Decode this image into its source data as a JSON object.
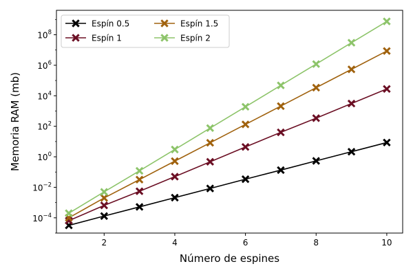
{
  "chart_data": {
    "type": "line",
    "title": "",
    "xlabel": "Número de espines",
    "ylabel": "Memoria RAM (mb)",
    "x": [
      1,
      2,
      3,
      4,
      5,
      6,
      7,
      8,
      9,
      10
    ],
    "xlim": [
      0.65,
      10.45
    ],
    "ylim": [
      1e-05,
      4000000000.0
    ],
    "yscale": "log",
    "grid": false,
    "legend_position": "top-left",
    "legend_columns": 2,
    "xticks": [
      {
        "value": 2,
        "label": "2"
      },
      {
        "value": 4,
        "label": "4"
      },
      {
        "value": 6,
        "label": "6"
      },
      {
        "value": 8,
        "label": "8"
      },
      {
        "value": 10,
        "label": "10"
      }
    ],
    "yticks": [
      {
        "value": 0.0001,
        "base": "10",
        "exp": "−4"
      },
      {
        "value": 0.01,
        "base": "10",
        "exp": "−2"
      },
      {
        "value": 1,
        "base": "10",
        "exp": "0"
      },
      {
        "value": 100,
        "base": "10",
        "exp": "2"
      },
      {
        "value": 10000,
        "base": "10",
        "exp": "4"
      },
      {
        "value": 1000000,
        "base": "10",
        "exp": "6"
      },
      {
        "value": 100000000,
        "base": "10",
        "exp": "8"
      }
    ],
    "series": [
      {
        "name": "Espín 0.5",
        "color": "#000000",
        "values": [
          3.2e-05,
          0.00013,
          0.00052,
          0.0021,
          0.0084,
          0.034,
          0.134,
          0.54,
          2.15,
          8.6
        ]
      },
      {
        "name": "Espín 1",
        "color": "#6b0f24",
        "values": [
          6.5e-05,
          0.00065,
          0.0055,
          0.05,
          0.47,
          4.4,
          40,
          340,
          3100,
          28000
        ]
      },
      {
        "name": "Espín 1.5",
        "color": "#a0620e",
        "values": [
          0.0001,
          0.002,
          0.032,
          0.52,
          8.3,
          133,
          2100,
          34000,
          540000,
          8600000
        ]
      },
      {
        "name": "Espín 2",
        "color": "#8dc46a",
        "values": [
          0.0002,
          0.005,
          0.12,
          3.0,
          76,
          1900,
          48000,
          1200000,
          30000000,
          750000000
        ]
      }
    ]
  }
}
